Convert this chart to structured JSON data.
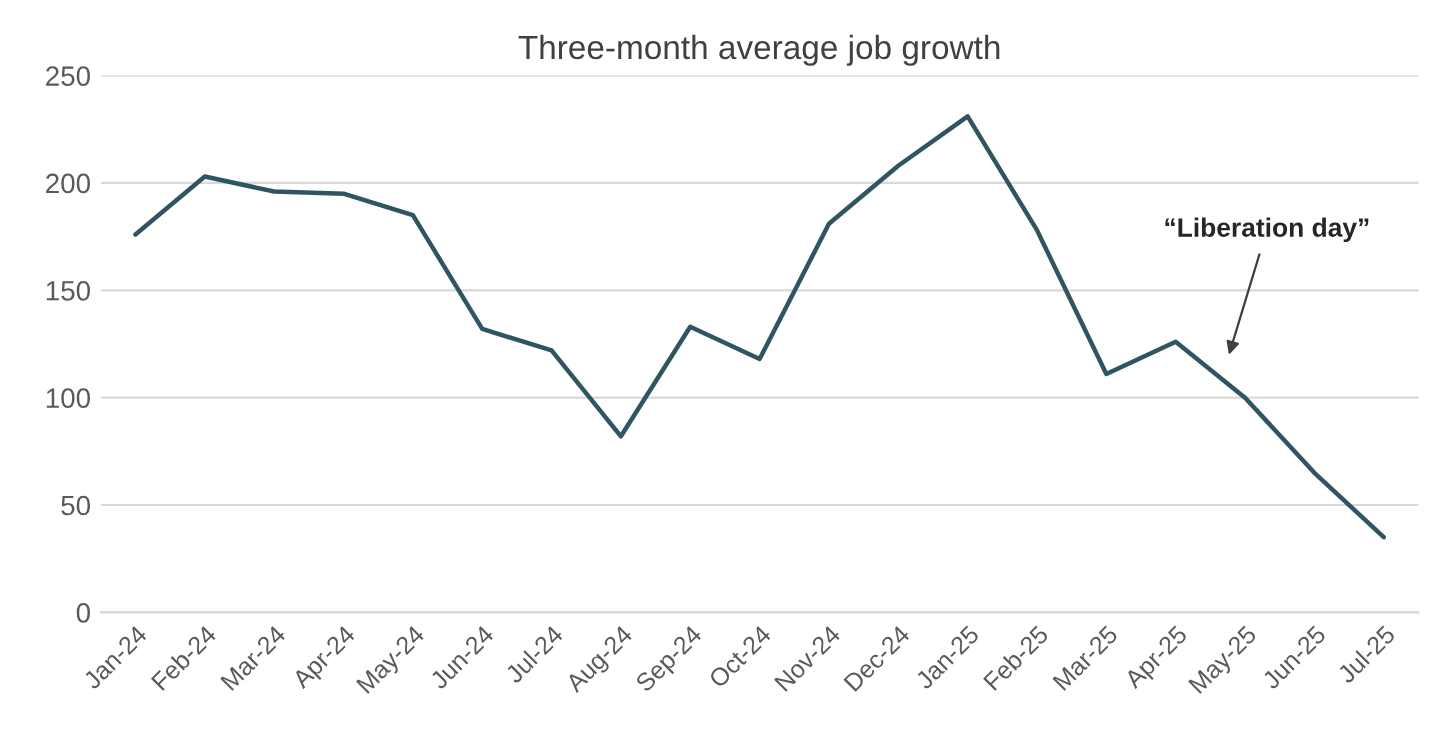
{
  "chart_data": {
    "type": "line",
    "title": "Three-month average job growth",
    "categories": [
      "Jan-24",
      "Feb-24",
      "Mar-24",
      "Apr-24",
      "May-24",
      "Jun-24",
      "Jul-24",
      "Aug-24",
      "Sep-24",
      "Oct-24",
      "Nov-24",
      "Dec-24",
      "Jan-25",
      "Feb-25",
      "Mar-25",
      "Apr-25",
      "May-25",
      "Jun-25",
      "Jul-25"
    ],
    "series": [
      {
        "color": "#2f5560",
        "values": [
          176,
          203,
          196,
          195,
          185,
          132,
          122,
          82,
          133,
          118,
          181,
          208,
          231,
          178,
          111,
          126,
          100,
          65,
          35
        ]
      }
    ],
    "ylim": [
      0,
      250
    ],
    "yticks": [
      0,
      50,
      100,
      150,
      200,
      250
    ],
    "grid": "y",
    "legend": false,
    "marker": "none",
    "line_style": "solid",
    "annotations": [
      "“Liberation day”"
    ]
  }
}
